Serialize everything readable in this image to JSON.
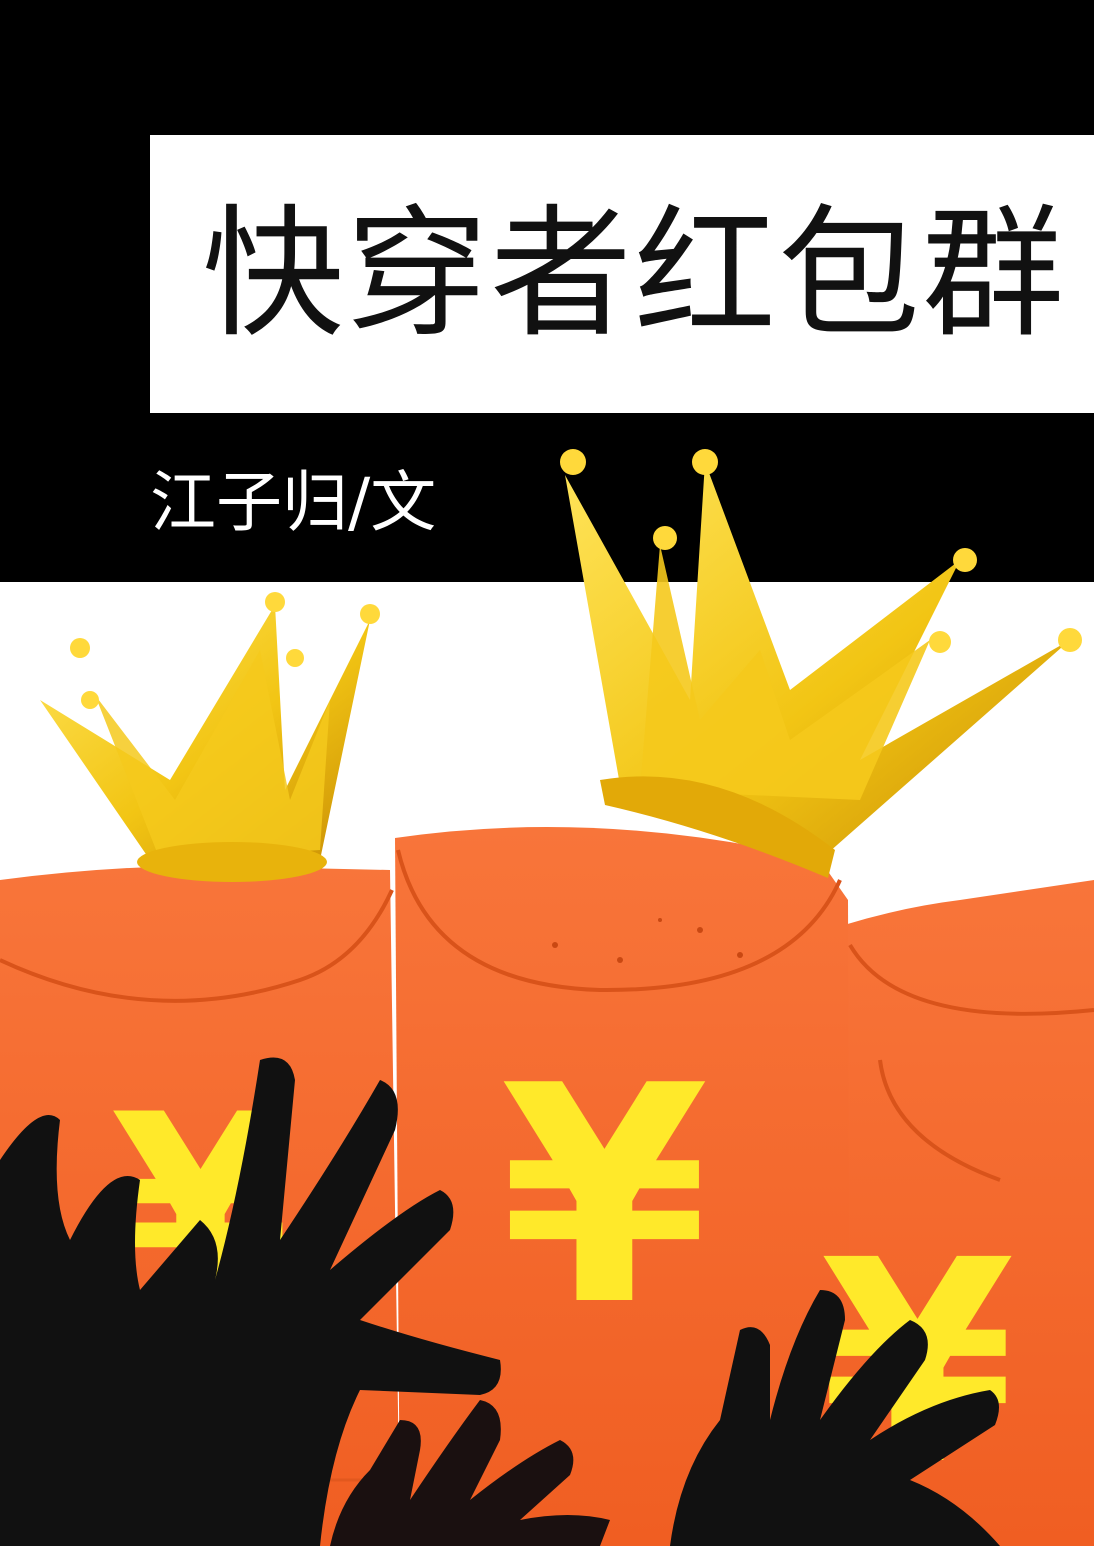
{
  "cover": {
    "title": "快穿者红包群",
    "author": "江子归/文",
    "yuan_symbol": "¥"
  },
  "colors": {
    "background_top": "#000000",
    "background_bottom": "#ffffff",
    "envelope": "#f36a2e",
    "crown": "#f2c514",
    "hands": "#111111",
    "yuan": "#ffe92a"
  },
  "icons": [
    "crown-icon",
    "red-envelope-icon",
    "hand-icon"
  ]
}
